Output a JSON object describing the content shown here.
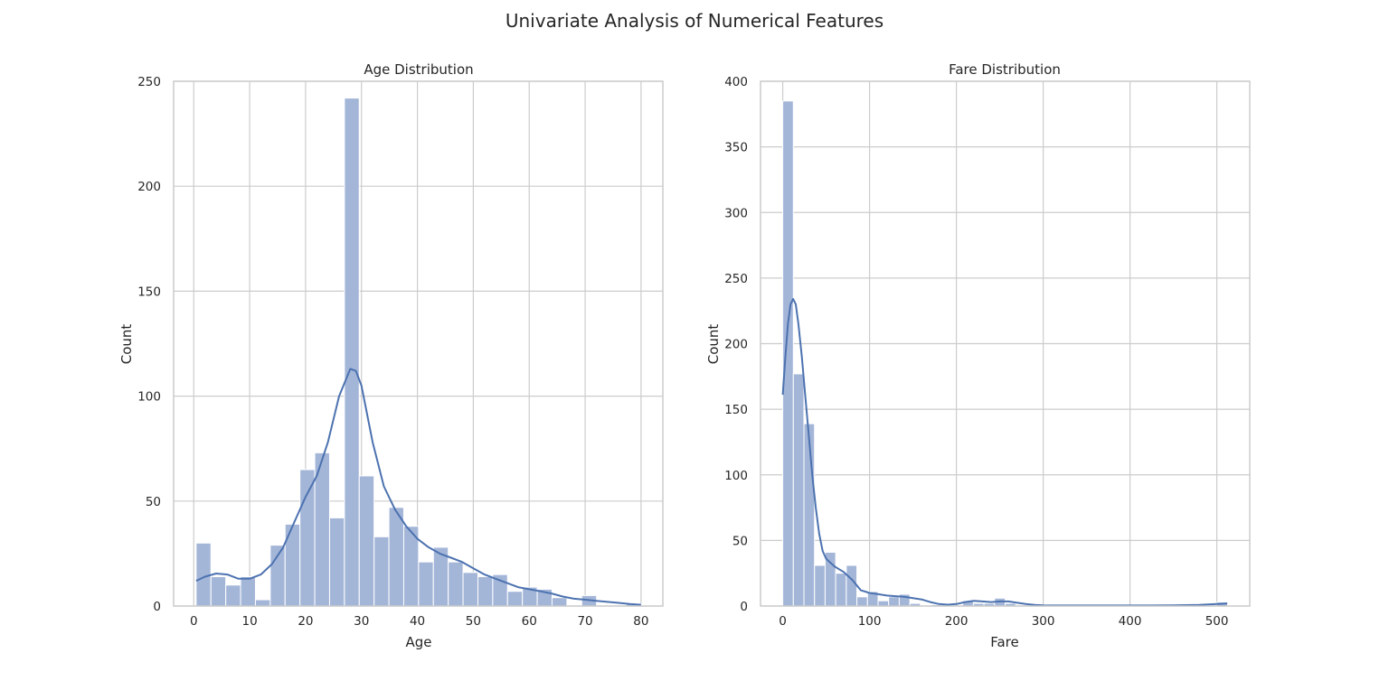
{
  "suptitle": "Univariate Analysis of Numerical Features",
  "colors": {
    "bar": "#a4b6d8",
    "kde": "#4c72b0",
    "grid": "#cccccc",
    "spine": "#cccccc"
  },
  "chart_data": [
    {
      "type": "bar",
      "title": "Age Distribution",
      "xlabel": "Age",
      "ylabel": "Count",
      "xlim": [
        -3.6,
        83.9
      ],
      "ylim": [
        0,
        250
      ],
      "xticks": [
        0,
        10,
        20,
        30,
        40,
        50,
        60,
        70,
        80
      ],
      "yticks": [
        0,
        50,
        100,
        150,
        200,
        250
      ],
      "grid": true,
      "bin_start": 0.42,
      "bin_width": 2.6527,
      "values": [
        30,
        14,
        10,
        14,
        3,
        29,
        39,
        65,
        73,
        42,
        242,
        62,
        33,
        47,
        38,
        21,
        28,
        21,
        16,
        14,
        15,
        7,
        9,
        8,
        4,
        0,
        5,
        0,
        0,
        1
      ],
      "kde": [
        [
          0.42,
          12
        ],
        [
          2,
          14
        ],
        [
          4,
          15.5
        ],
        [
          6,
          15
        ],
        [
          8,
          13
        ],
        [
          10,
          13
        ],
        [
          12,
          15
        ],
        [
          14,
          20
        ],
        [
          16,
          28
        ],
        [
          18,
          40
        ],
        [
          20,
          52
        ],
        [
          22,
          62
        ],
        [
          24,
          78
        ],
        [
          26,
          100
        ],
        [
          28,
          113
        ],
        [
          29,
          112
        ],
        [
          30,
          105
        ],
        [
          32,
          78
        ],
        [
          34,
          57
        ],
        [
          36,
          46
        ],
        [
          38,
          38
        ],
        [
          40,
          32
        ],
        [
          42,
          28
        ],
        [
          44,
          25
        ],
        [
          46,
          23
        ],
        [
          48,
          21
        ],
        [
          50,
          18
        ],
        [
          52,
          15
        ],
        [
          54,
          13
        ],
        [
          56,
          11
        ],
        [
          58,
          9
        ],
        [
          60,
          8
        ],
        [
          62,
          7
        ],
        [
          64,
          6
        ],
        [
          66,
          4.5
        ],
        [
          68,
          3.5
        ],
        [
          70,
          3
        ],
        [
          72,
          2.5
        ],
        [
          74,
          2
        ],
        [
          76,
          1.5
        ],
        [
          78,
          1
        ],
        [
          80,
          0.6
        ]
      ]
    },
    {
      "type": "bar",
      "title": "Fare Distribution",
      "xlabel": "Fare",
      "ylabel": "Count",
      "xlim": [
        -25.6,
        537.9
      ],
      "ylim": [
        0,
        400
      ],
      "xticks": [
        0,
        100,
        200,
        300,
        400,
        500
      ],
      "yticks": [
        0,
        50,
        100,
        150,
        200,
        250,
        300,
        350,
        400
      ],
      "grid": true,
      "bin_start": 0,
      "bin_width": 12.2,
      "values": [
        385,
        177,
        139,
        31,
        41,
        25,
        31,
        7,
        11,
        4,
        7,
        9,
        2,
        0,
        1,
        1,
        0,
        4,
        2,
        2,
        6,
        2,
        0,
        0,
        0,
        0,
        0,
        0,
        0,
        0,
        0,
        0,
        0,
        0,
        0,
        0,
        0,
        0,
        0,
        0,
        0,
        3
      ],
      "kde": [
        [
          0,
          161
        ],
        [
          3,
          190
        ],
        [
          6,
          215
        ],
        [
          9,
          230
        ],
        [
          12,
          234
        ],
        [
          15,
          230
        ],
        [
          18,
          215
        ],
        [
          22,
          190
        ],
        [
          26,
          160
        ],
        [
          30,
          130
        ],
        [
          34,
          100
        ],
        [
          38,
          75
        ],
        [
          42,
          55
        ],
        [
          46,
          42
        ],
        [
          50,
          36
        ],
        [
          55,
          33
        ],
        [
          60,
          30
        ],
        [
          65,
          28
        ],
        [
          70,
          26
        ],
        [
          75,
          23
        ],
        [
          80,
          20
        ],
        [
          85,
          16
        ],
        [
          90,
          12
        ],
        [
          100,
          10
        ],
        [
          110,
          9
        ],
        [
          120,
          8
        ],
        [
          130,
          7.5
        ],
        [
          140,
          7
        ],
        [
          150,
          6
        ],
        [
          160,
          5
        ],
        [
          170,
          3
        ],
        [
          180,
          1.5
        ],
        [
          190,
          1
        ],
        [
          200,
          1.5
        ],
        [
          210,
          3
        ],
        [
          220,
          4
        ],
        [
          230,
          3.5
        ],
        [
          240,
          3
        ],
        [
          250,
          3.5
        ],
        [
          260,
          3.5
        ],
        [
          270,
          2.5
        ],
        [
          280,
          1.5
        ],
        [
          290,
          0.8
        ],
        [
          300,
          0.5
        ],
        [
          350,
          0.4
        ],
        [
          400,
          0.4
        ],
        [
          450,
          0.5
        ],
        [
          480,
          0.8
        ],
        [
          500,
          1.5
        ],
        [
          512,
          2
        ]
      ]
    }
  ]
}
